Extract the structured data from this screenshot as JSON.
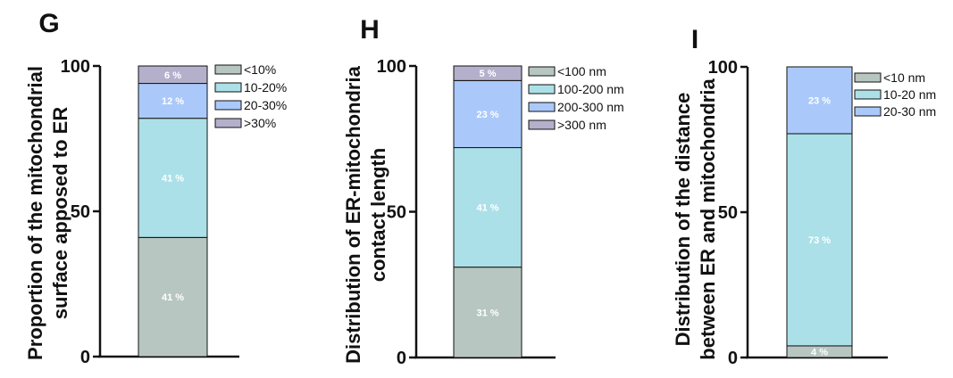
{
  "colors": {
    "s1": "#b7c6c1",
    "s2": "#ace0e8",
    "s3": "#aac9fa",
    "s4": "#b4b0cb",
    "stroke": "#111111"
  },
  "chart_data": [
    {
      "type": "bar",
      "panel": "G",
      "ylabel_lines": [
        "Proportion of the mitochondrial",
        "surface apposed to ER"
      ],
      "ylim": [
        0,
        100
      ],
      "yticks": [
        "0",
        "50",
        "100"
      ],
      "segments": [
        {
          "legend": "<10%",
          "value": 41,
          "label": "41 %"
        },
        {
          "legend": "10-20%",
          "value": 41,
          "label": "41 %"
        },
        {
          "legend": "20-30%",
          "value": 12,
          "label": "12 %"
        },
        {
          "legend": ">30%",
          "value": 6,
          "label": "6 %"
        }
      ]
    },
    {
      "type": "bar",
      "panel": "H",
      "ylabel_lines": [
        "Distribution of ER-mitochondria",
        "contact length"
      ],
      "ylim": [
        0,
        100
      ],
      "yticks": [
        "0",
        "50",
        "100"
      ],
      "segments": [
        {
          "legend": "<100 nm",
          "value": 31,
          "label": "31 %"
        },
        {
          "legend": "100-200 nm",
          "value": 41,
          "label": "41 %"
        },
        {
          "legend": "200-300 nm",
          "value": 23,
          "label": "23 %"
        },
        {
          "legend": ">300 nm",
          "value": 5,
          "label": "5 %"
        }
      ]
    },
    {
      "type": "bar",
      "panel": "I",
      "ylabel_lines": [
        "Distribution of the distance",
        "between ER and mitochondria"
      ],
      "ylim": [
        0,
        100
      ],
      "yticks": [
        "0",
        "50",
        "100"
      ],
      "segments": [
        {
          "legend": "<10 nm",
          "value": 4,
          "label": "4 %"
        },
        {
          "legend": "10-20 nm",
          "value": 73,
          "label": "73 %"
        },
        {
          "legend": "20-30 nm",
          "value": 23,
          "label": "23 %"
        }
      ]
    }
  ]
}
